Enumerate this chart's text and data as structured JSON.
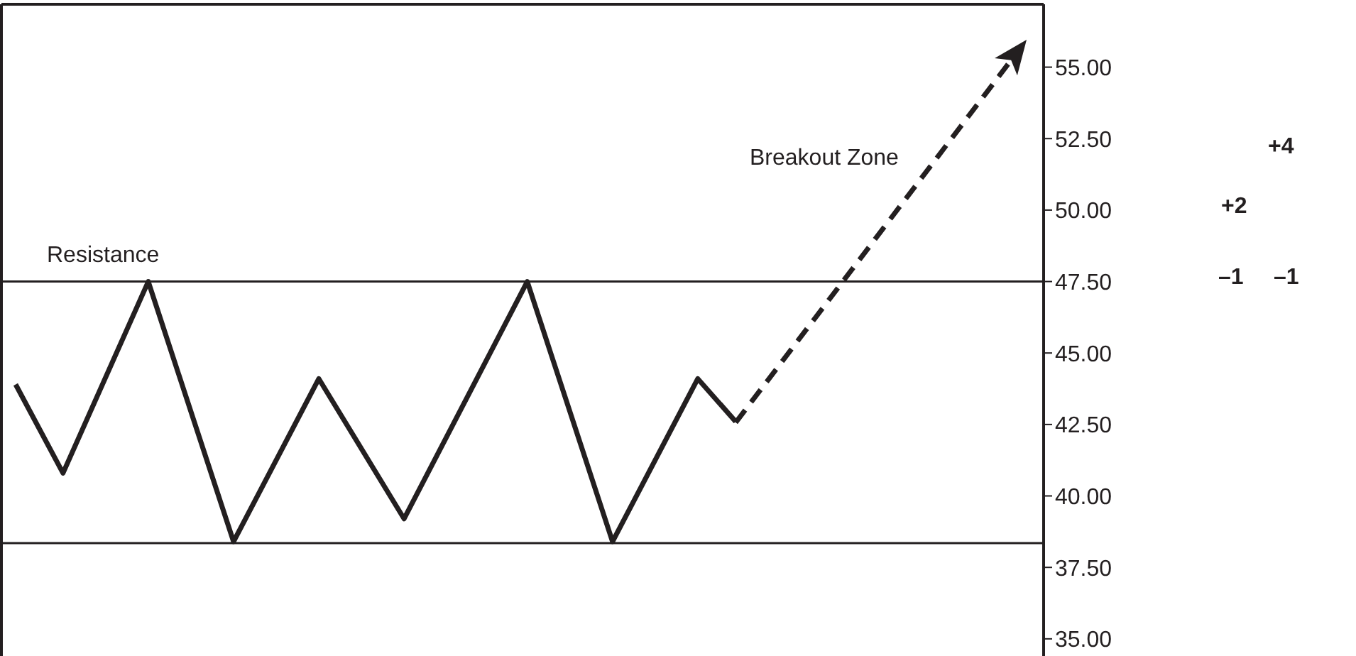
{
  "chart_data": {
    "type": "line",
    "categories": [
      null,
      null,
      null,
      null,
      null,
      null,
      null,
      null,
      null,
      null,
      null,
      null,
      null,
      null,
      null,
      null,
      null,
      null,
      null,
      null,
      null,
      null,
      null,
      null,
      null,
      null,
      null,
      null,
      null,
      null,
      null,
      null,
      null,
      null,
      null,
      null,
      null,
      null,
      null,
      null,
      null,
      null,
      null,
      null,
      null,
      null,
      null,
      null,
      null,
      null,
      null,
      null,
      null,
      null,
      null,
      null,
      null,
      null,
      null,
      null,
      null,
      null,
      null,
      null,
      null,
      null,
      null,
      null,
      null,
      null,
      null,
      null,
      null,
      null,
      null,
      null,
      null,
      null,
      null,
      null,
      null,
      null,
      null,
      null,
      null,
      null,
      null,
      null,
      null,
      null,
      null,
      null,
      null,
      null,
      null,
      null,
      null,
      null,
      null,
      null,
      null,
      null,
      null,
      null,
      null,
      null,
      null,
      null,
      null,
      null
    ],
    "series": [
      {
        "type": "line",
        "color": "#231f20",
        "line_style": "solid",
        "values": [
          null,
          43.9,
          null,
          null,
          null,
          null,
          40.8,
          null,
          null,
          null,
          null,
          null,
          null,
          null,
          null,
          47.5,
          null,
          null,
          null,
          null,
          null,
          null,
          null,
          null,
          38.4,
          null,
          null,
          null,
          null,
          null,
          null,
          null,
          null,
          44.1,
          null,
          null,
          null,
          null,
          null,
          null,
          null,
          null,
          39.2,
          null,
          null,
          null,
          null,
          null,
          null,
          null,
          null,
          null,
          null,
          null,
          null,
          47.5,
          null,
          null,
          null,
          null,
          null,
          null,
          null,
          null,
          38.4,
          null,
          null,
          null,
          null,
          null,
          null,
          null,
          null,
          44.1,
          null,
          null,
          null,
          42.6,
          null,
          null,
          null,
          null,
          null,
          null,
          null,
          null,
          null,
          null,
          null,
          null,
          null,
          null,
          null,
          null,
          null,
          null,
          null,
          null,
          null,
          null,
          null,
          null,
          null,
          null,
          null,
          null,
          null,
          null,
          null,
          null
        ]
      }
    ],
    "ylim": [
      34.4,
      57.2
    ],
    "yticks": [
      {
        "value": 35,
        "label": "35.00"
      },
      {
        "value": 37.5,
        "label": "37.50"
      },
      {
        "value": 40,
        "label": "40.00"
      },
      {
        "value": 42.5,
        "label": "42.50"
      },
      {
        "value": 45,
        "label": "45.00"
      },
      {
        "value": 47.5,
        "label": "47.50"
      },
      {
        "value": 50,
        "label": "50.00"
      },
      {
        "value": 52.5,
        "label": "52.50"
      },
      {
        "value": 55,
        "label": "55.00"
      }
    ],
    "ref_lines": [
      {
        "axis": "y",
        "value": 47.5,
        "label": "Resistance",
        "color": "#231f20"
      },
      {
        "axis": "y",
        "value": 38.35,
        "color": "#231f20"
      }
    ],
    "annotations": [
      "Breakout Zone",
      "+4",
      "+2",
      "–1",
      "–1"
    ],
    "grid": false,
    "marker": "none"
  }
}
